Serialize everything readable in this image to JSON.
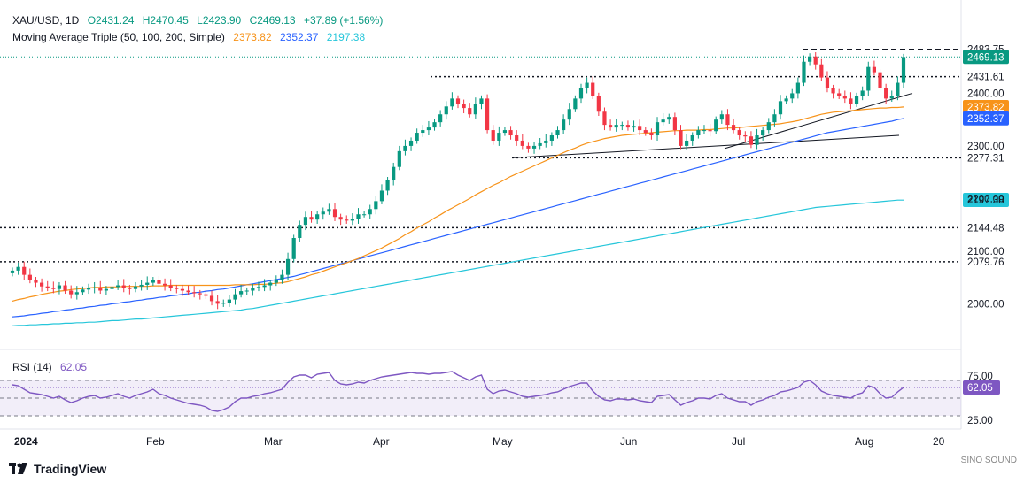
{
  "header": {
    "symbol": "XAU/USD, 1D",
    "open": "O2431.24",
    "high": "H2470.45",
    "low": "L2423.90",
    "close": "C2469.13",
    "change": "+37.89 (+1.56%)",
    "ma_title": "Moving Average Triple (50, 100, 200, Simple)",
    "ma50": "2373.82",
    "ma100": "2352.37",
    "ma200": "2197.38",
    "rsi_title": "RSI (14)",
    "rsi_value": "62.05"
  },
  "footer": {
    "brand": "TradingView",
    "watermark": "SINO SOUND"
  },
  "colors": {
    "up": "#089981",
    "down": "#f23645",
    "ma50": "#f7931a",
    "ma100": "#2962ff",
    "ma200": "#26c6da",
    "rsi": "#7e57c2",
    "price_tag": "#089981"
  },
  "chart_data": {
    "type": "candlestick",
    "ylim": [
      1930,
      2510
    ],
    "y_ticks": [
      "2300.00",
      "2200.00",
      "2100.00",
      "2000.00"
    ],
    "price_labels": [
      {
        "text": "2483.75",
        "value": 2483.75,
        "style": "plain"
      },
      {
        "text": "2469.13",
        "value": 2469.13,
        "style": "last"
      },
      {
        "text": "2431.61",
        "value": 2431.61,
        "style": "plain"
      },
      {
        "text": "2400.00",
        "value": 2400,
        "style": "tick"
      },
      {
        "text": "2373.82",
        "value": 2373.82,
        "style": "ma50"
      },
      {
        "text": "2352.37",
        "value": 2352.37,
        "style": "ma100"
      },
      {
        "text": "2277.31",
        "value": 2277.31,
        "style": "plain"
      },
      {
        "text": "2197.38",
        "value": 2197.38,
        "style": "ma200"
      },
      {
        "text": "2144.48",
        "value": 2144.48,
        "style": "plain"
      },
      {
        "text": "2079.76",
        "value": 2079.76,
        "style": "plain"
      }
    ],
    "x_labels": [
      "2024",
      "Feb",
      "Mar",
      "Apr",
      "May",
      "Jun",
      "Jul",
      "Aug",
      "20"
    ],
    "horizontal_levels": [
      2431.61,
      2277.31,
      2144.48,
      2079.76
    ],
    "close_series": [
      2063,
      2070,
      2055,
      2045,
      2040,
      2033,
      2030,
      2028,
      2035,
      2025,
      2018,
      2022,
      2027,
      2030,
      2031,
      2025,
      2028,
      2032,
      2035,
      2030,
      2028,
      2033,
      2036,
      2040,
      2045,
      2038,
      2035,
      2030,
      2028,
      2025,
      2022,
      2020,
      2018,
      2015,
      2005,
      2000,
      2002,
      2008,
      2018,
      2024,
      2025,
      2030,
      2032,
      2035,
      2040,
      2046,
      2055,
      2085,
      2125,
      2150,
      2165,
      2160,
      2170,
      2175,
      2180,
      2165,
      2160,
      2158,
      2162,
      2170,
      2170,
      2180,
      2195,
      2215,
      2235,
      2260,
      2290,
      2300,
      2310,
      2325,
      2330,
      2335,
      2345,
      2360,
      2375,
      2390,
      2380,
      2372,
      2360,
      2380,
      2390,
      2330,
      2310,
      2325,
      2330,
      2320,
      2310,
      2300,
      2295,
      2300,
      2305,
      2310,
      2320,
      2330,
      2350,
      2370,
      2390,
      2410,
      2420,
      2395,
      2365,
      2340,
      2335,
      2340,
      2340,
      2335,
      2338,
      2330,
      2325,
      2320,
      2345,
      2350,
      2355,
      2330,
      2300,
      2310,
      2320,
      2330,
      2330,
      2328,
      2350,
      2360,
      2340,
      2330,
      2320,
      2318,
      2302,
      2320,
      2330,
      2345,
      2360,
      2385,
      2390,
      2400,
      2420,
      2460,
      2470,
      2455,
      2430,
      2410,
      2400,
      2395,
      2390,
      2380,
      2395,
      2405,
      2450,
      2440,
      2410,
      2390,
      2395,
      2420,
      2469
    ],
    "ma50_series": [
      2005,
      2008,
      2010,
      2013,
      2015,
      2018,
      2020,
      2022,
      2024,
      2025,
      2027,
      2028,
      2029,
      2030,
      2031,
      2031,
      2032,
      2032,
      2032,
      2033,
      2033,
      2033,
      2033,
      2033,
      2034,
      2034,
      2034,
      2035,
      2035,
      2035,
      2035,
      2035,
      2035,
      2035,
      2035,
      2035,
      2035,
      2035,
      2036,
      2036,
      2036,
      2036,
      2037,
      2037,
      2038,
      2039,
      2040,
      2042,
      2045,
      2048,
      2051,
      2055,
      2058,
      2062,
      2066,
      2070,
      2074,
      2078,
      2082,
      2086,
      2091,
      2096,
      2101,
      2106,
      2112,
      2118,
      2124,
      2131,
      2137,
      2144,
      2150,
      2156,
      2163,
      2169,
      2176,
      2182,
      2188,
      2194,
      2200,
      2207,
      2213,
      2219,
      2225,
      2230,
      2236,
      2242,
      2247,
      2252,
      2257,
      2262,
      2267,
      2272,
      2277,
      2282,
      2287,
      2292,
      2296,
      2301,
      2305,
      2308,
      2311,
      2314,
      2316,
      2318,
      2320,
      2321,
      2322,
      2323,
      2324,
      2325,
      2326,
      2327,
      2328,
      2329,
      2329,
      2330,
      2330,
      2330,
      2331,
      2331,
      2332,
      2333,
      2334,
      2334,
      2335,
      2336,
      2337,
      2338,
      2339,
      2340,
      2341,
      2342,
      2344,
      2346,
      2348,
      2351,
      2354,
      2357,
      2360,
      2362,
      2364,
      2365,
      2366,
      2367,
      2368,
      2369,
      2370,
      2371,
      2372,
      2372,
      2373,
      2373,
      2374
    ],
    "ma100_series": [
      1975,
      1976,
      1977,
      1979,
      1980,
      1982,
      1983,
      1985,
      1986,
      1988,
      1989,
      1991,
      1992,
      1994,
      1995,
      1997,
      1998,
      2000,
      2001,
      2003,
      2004,
      2006,
      2007,
      2009,
      2010,
      2012,
      2013,
      2015,
      2016,
      2018,
      2019,
      2021,
      2022,
      2024,
      2025,
      2027,
      2028,
      2030,
      2032,
      2034,
      2036,
      2038,
      2040,
      2042,
      2044,
      2046,
      2048,
      2050,
      2052,
      2055,
      2058,
      2061,
      2064,
      2067,
      2070,
      2073,
      2076,
      2079,
      2082,
      2085,
      2088,
      2091,
      2094,
      2097,
      2100,
      2103,
      2106,
      2109,
      2112,
      2115,
      2118,
      2121,
      2124,
      2127,
      2130,
      2133,
      2136,
      2139,
      2142,
      2145,
      2148,
      2151,
      2154,
      2157,
      2160,
      2163,
      2166,
      2169,
      2172,
      2175,
      2178,
      2181,
      2184,
      2187,
      2190,
      2193,
      2196,
      2199,
      2202,
      2205,
      2208,
      2211,
      2214,
      2217,
      2220,
      2223,
      2226,
      2229,
      2232,
      2235,
      2238,
      2241,
      2244,
      2247,
      2250,
      2253,
      2256,
      2259,
      2262,
      2265,
      2268,
      2271,
      2274,
      2277,
      2280,
      2283,
      2286,
      2289,
      2292,
      2295,
      2298,
      2301,
      2304,
      2307,
      2310,
      2313,
      2316,
      2319,
      2322,
      2325,
      2327,
      2329,
      2331,
      2333,
      2335,
      2337,
      2339,
      2341,
      2343,
      2345,
      2347,
      2350,
      2352
    ],
    "ma200_series": [
      1958,
      1959,
      1959,
      1960,
      1960,
      1961,
      1961,
      1962,
      1962,
      1963,
      1963,
      1964,
      1964,
      1965,
      1965,
      1966,
      1967,
      1968,
      1968,
      1969,
      1970,
      1971,
      1971,
      1972,
      1973,
      1974,
      1975,
      1976,
      1977,
      1978,
      1979,
      1980,
      1981,
      1982,
      1983,
      1984,
      1985,
      1986,
      1987,
      1988,
      1990,
      1991,
      1993,
      1995,
      1997,
      1999,
      2001,
      2003,
      2005,
      2007,
      2009,
      2011,
      2013,
      2015,
      2017,
      2019,
      2021,
      2023,
      2025,
      2027,
      2029,
      2031,
      2033,
      2035,
      2037,
      2039,
      2041,
      2043,
      2045,
      2047,
      2049,
      2051,
      2053,
      2055,
      2057,
      2059,
      2061,
      2063,
      2065,
      2067,
      2069,
      2071,
      2073,
      2075,
      2077,
      2079,
      2081,
      2083,
      2085,
      2087,
      2089,
      2091,
      2093,
      2095,
      2097,
      2099,
      2101,
      2103,
      2105,
      2107,
      2109,
      2111,
      2113,
      2115,
      2117,
      2119,
      2121,
      2123,
      2125,
      2127,
      2129,
      2131,
      2133,
      2135,
      2137,
      2139,
      2141,
      2143,
      2145,
      2147,
      2149,
      2151,
      2153,
      2155,
      2157,
      2159,
      2161,
      2163,
      2165,
      2167,
      2169,
      2171,
      2173,
      2175,
      2177,
      2179,
      2181,
      2183,
      2184,
      2185,
      2186,
      2187,
      2188,
      2189,
      2190,
      2191,
      2192,
      2193,
      2194,
      2195,
      2196,
      2197,
      2197
    ],
    "rsi": {
      "ylim": [
        20,
        90
      ],
      "ticks": [
        "75.00",
        "25.00"
      ],
      "levels": [
        70,
        50,
        30
      ],
      "series": [
        65,
        64,
        60,
        56,
        55,
        54,
        52,
        50,
        52,
        48,
        45,
        47,
        50,
        52,
        53,
        50,
        51,
        53,
        55,
        52,
        50,
        53,
        55,
        57,
        60,
        55,
        53,
        50,
        48,
        46,
        44,
        43,
        42,
        40,
        36,
        35,
        37,
        40,
        46,
        50,
        50,
        52,
        53,
        55,
        56,
        58,
        60,
        68,
        74,
        76,
        76,
        73,
        77,
        78,
        79,
        70,
        66,
        65,
        66,
        68,
        67,
        70,
        72,
        74,
        75,
        76,
        77,
        78,
        79,
        78,
        78,
        77,
        78,
        78,
        79,
        80,
        76,
        73,
        70,
        74,
        76,
        60,
        55,
        58,
        59,
        57,
        55,
        52,
        51,
        52,
        53,
        54,
        56,
        57,
        60,
        63,
        65,
        67,
        67,
        58,
        52,
        48,
        47,
        49,
        49,
        48,
        49,
        47,
        46,
        45,
        52,
        53,
        54,
        48,
        42,
        45,
        47,
        50,
        50,
        49,
        53,
        55,
        50,
        48,
        46,
        46,
        42,
        46,
        48,
        51,
        53,
        57,
        58,
        60,
        62,
        68,
        70,
        65,
        58,
        55,
        53,
        52,
        51,
        50,
        54,
        56,
        64,
        62,
        55,
        50,
        51,
        57,
        62
      ]
    }
  }
}
